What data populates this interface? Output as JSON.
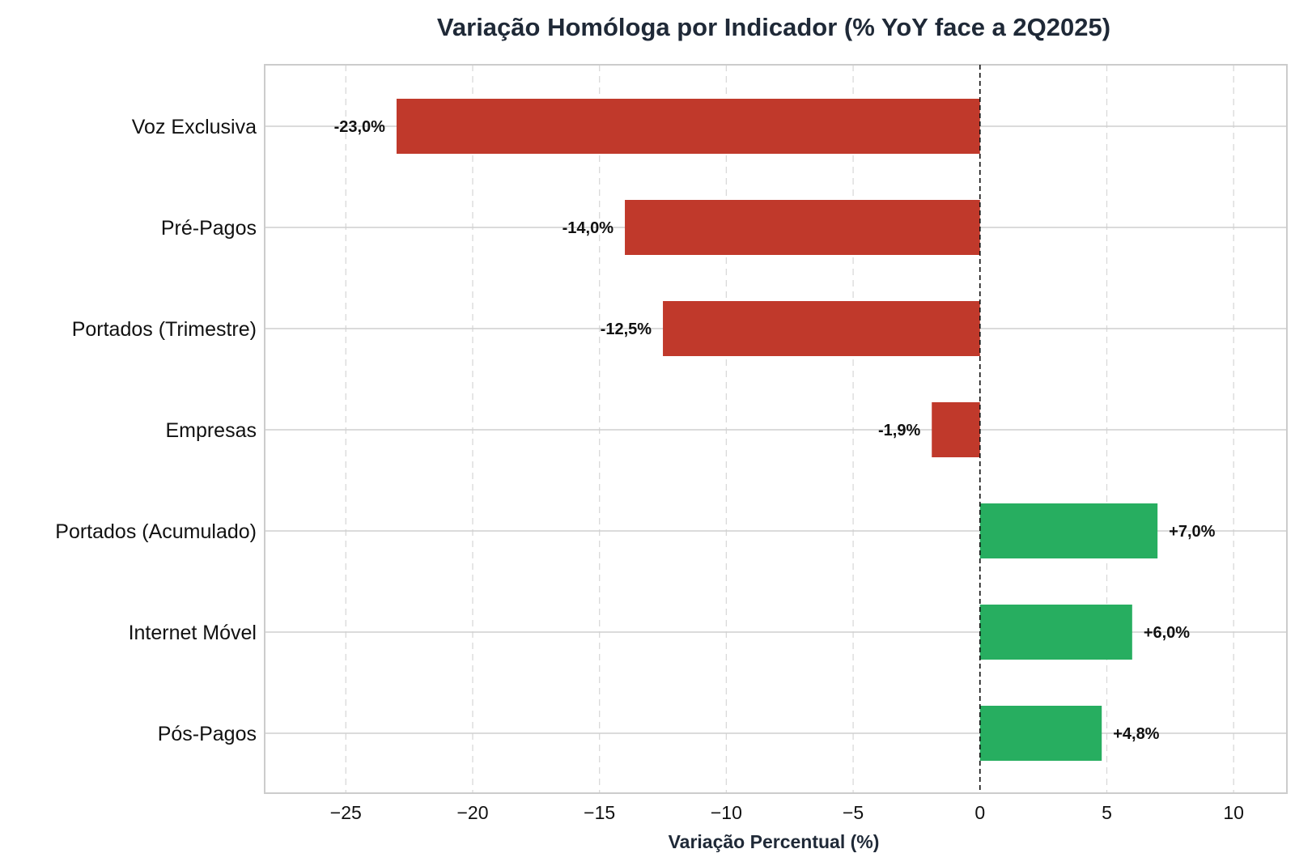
{
  "chart_data": {
    "type": "bar",
    "orientation": "horizontal",
    "title": "Variação Homóloga por Indicador (% YoY face a 2Q2025)",
    "xlabel": "Variação Percentual (%)",
    "ylabel": "",
    "categories": [
      "Voz Exclusiva",
      "Pré-Pagos",
      "Portados (Trimestre)",
      "Empresas",
      "Portados (Acumulado)",
      "Internet Móvel",
      "Pós-Pagos"
    ],
    "values": [
      -23.0,
      -14.0,
      -12.5,
      -1.9,
      7.0,
      6.0,
      4.8
    ],
    "data_labels": [
      "-23,0%",
      "-14,0%",
      "-12,5%",
      "-1,9%",
      "+7,0%",
      "+6,0%",
      "+4,8%"
    ],
    "xlim": [
      -28.2,
      12.1
    ],
    "xticks": [
      -25,
      -20,
      -15,
      -10,
      -5,
      0,
      5,
      10
    ],
    "xtick_labels": [
      "−25",
      "−20",
      "−15",
      "−10",
      "−5",
      "0",
      "5",
      "10"
    ],
    "colors": {
      "negative": "#c0392b",
      "positive": "#27ae60",
      "zero_line": "#111111",
      "grid": "#d9d9d9",
      "frame": "#cccccc"
    },
    "grid": true,
    "zero_reference_line": true,
    "legend": "none"
  }
}
